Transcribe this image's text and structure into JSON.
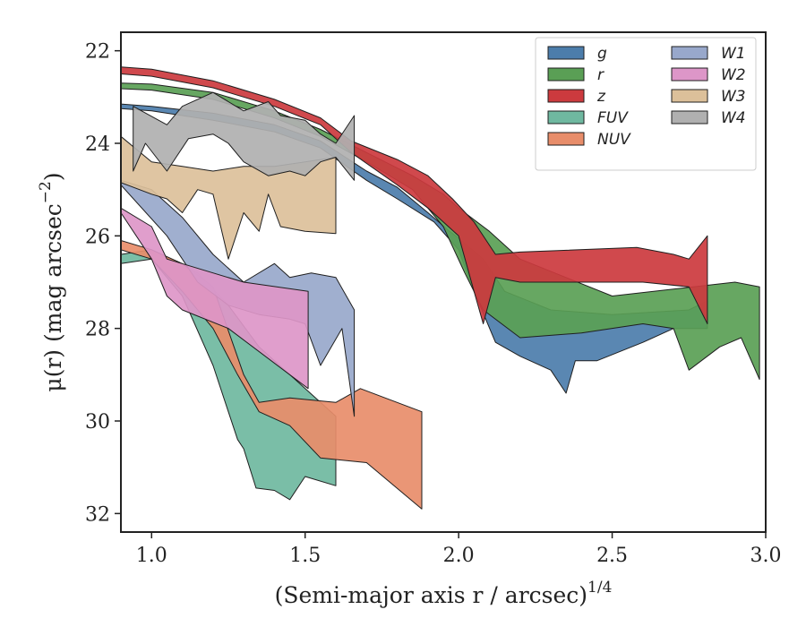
{
  "chart_data": {
    "type": "area",
    "xlabel": "(Semi-major axis r / arcsec)",
    "xlabel_var": "r",
    "xlabel_power": "1/4",
    "ylabel": "μ(r) (mag arcsec",
    "ylabel_var": "r",
    "ylabel_power": "−2",
    "xlim": [
      0.9,
      3.0
    ],
    "ylim": [
      32.4,
      21.6
    ],
    "y_inverted": true,
    "xticks": [
      1.0,
      1.5,
      2.0,
      2.5,
      3.0
    ],
    "xtick_labels": [
      "1.0",
      "1.5",
      "2.0",
      "2.5",
      "3.0"
    ],
    "yticks": [
      22,
      24,
      26,
      28,
      30,
      32
    ],
    "ytick_labels": [
      "22",
      "24",
      "26",
      "28",
      "30",
      "32"
    ],
    "grid": false,
    "legend_position": "top-right",
    "legend_columns": 2,
    "series": [
      {
        "name": "g",
        "color": "#4c7dab",
        "upper": [
          [
            0.9,
            23.15
          ],
          [
            1.0,
            23.2
          ],
          [
            1.2,
            23.35
          ],
          [
            1.4,
            23.6
          ],
          [
            1.55,
            23.95
          ],
          [
            1.7,
            24.6
          ],
          [
            1.8,
            24.95
          ],
          [
            1.9,
            25.5
          ],
          [
            1.97,
            25.9
          ],
          [
            2.0,
            26.05
          ],
          [
            2.08,
            26.5
          ],
          [
            2.15,
            27.2
          ],
          [
            2.3,
            27.6
          ],
          [
            2.5,
            27.7
          ],
          [
            2.75,
            27.6
          ],
          [
            2.81,
            27.4
          ]
        ],
        "lower": [
          [
            2.81,
            28.0
          ],
          [
            2.7,
            28.0
          ],
          [
            2.6,
            28.3
          ],
          [
            2.45,
            28.7
          ],
          [
            2.38,
            28.7
          ],
          [
            2.35,
            29.4
          ],
          [
            2.3,
            28.9
          ],
          [
            2.2,
            28.6
          ],
          [
            2.12,
            28.3
          ],
          [
            2.05,
            27.2
          ],
          [
            2.0,
            26.3
          ],
          [
            1.92,
            25.7
          ],
          [
            1.8,
            25.2
          ],
          [
            1.7,
            24.8
          ],
          [
            1.55,
            24.1
          ],
          [
            1.4,
            23.75
          ],
          [
            1.2,
            23.5
          ],
          [
            1.0,
            23.3
          ],
          [
            0.9,
            23.25
          ]
        ]
      },
      {
        "name": "r",
        "color": "#5a9f55",
        "upper": [
          [
            0.9,
            22.7
          ],
          [
            1.0,
            22.72
          ],
          [
            1.2,
            22.9
          ],
          [
            1.4,
            23.3
          ],
          [
            1.55,
            23.7
          ],
          [
            1.7,
            24.2
          ],
          [
            1.85,
            24.7
          ],
          [
            1.95,
            25.1
          ],
          [
            2.0,
            25.4
          ],
          [
            2.1,
            25.9
          ],
          [
            2.2,
            26.5
          ],
          [
            2.5,
            27.3
          ],
          [
            2.9,
            27.0
          ],
          [
            2.98,
            27.1
          ]
        ],
        "lower": [
          [
            2.98,
            29.1
          ],
          [
            2.92,
            28.2
          ],
          [
            2.85,
            28.4
          ],
          [
            2.75,
            28.9
          ],
          [
            2.7,
            28.0
          ],
          [
            2.6,
            27.9
          ],
          [
            2.4,
            28.1
          ],
          [
            2.2,
            28.2
          ],
          [
            2.08,
            27.6
          ],
          [
            2.02,
            26.8
          ],
          [
            1.95,
            25.8
          ],
          [
            1.85,
            25.0
          ],
          [
            1.7,
            24.4
          ],
          [
            1.55,
            23.85
          ],
          [
            1.4,
            23.45
          ],
          [
            1.2,
            23.05
          ],
          [
            1.0,
            22.85
          ],
          [
            0.9,
            22.82
          ]
        ]
      },
      {
        "name": "z",
        "color": "#cc3a3e",
        "upper": [
          [
            0.9,
            22.35
          ],
          [
            1.0,
            22.4
          ],
          [
            1.2,
            22.65
          ],
          [
            1.4,
            23.05
          ],
          [
            1.55,
            23.45
          ],
          [
            1.65,
            23.95
          ],
          [
            1.8,
            24.35
          ],
          [
            1.9,
            24.7
          ],
          [
            1.98,
            25.2
          ],
          [
            2.05,
            25.7
          ],
          [
            2.12,
            26.4
          ],
          [
            2.2,
            26.35
          ],
          [
            2.58,
            26.25
          ],
          [
            2.7,
            26.4
          ],
          [
            2.75,
            26.5
          ],
          [
            2.81,
            26.0
          ]
        ],
        "lower": [
          [
            2.81,
            27.9
          ],
          [
            2.75,
            27.1
          ],
          [
            2.6,
            27.0
          ],
          [
            2.4,
            27.0
          ],
          [
            2.2,
            27.0
          ],
          [
            2.12,
            26.9
          ],
          [
            2.08,
            27.9
          ],
          [
            2.05,
            27.2
          ],
          [
            2.0,
            26.0
          ],
          [
            1.9,
            25.4
          ],
          [
            1.8,
            24.9
          ],
          [
            1.65,
            24.2
          ],
          [
            1.55,
            23.6
          ],
          [
            1.4,
            23.2
          ],
          [
            1.2,
            22.8
          ],
          [
            1.0,
            22.55
          ],
          [
            0.9,
            22.5
          ]
        ]
      },
      {
        "name": "FUV",
        "color": "#6fb8a0",
        "upper": [
          [
            0.9,
            26.4
          ],
          [
            1.0,
            26.3
          ],
          [
            1.15,
            26.8
          ],
          [
            1.25,
            27.5
          ],
          [
            1.35,
            28.4
          ],
          [
            1.45,
            29.0
          ],
          [
            1.55,
            29.6
          ],
          [
            1.6,
            29.9
          ]
        ],
        "lower": [
          [
            1.6,
            31.4
          ],
          [
            1.5,
            31.2
          ],
          [
            1.45,
            31.7
          ],
          [
            1.4,
            31.5
          ],
          [
            1.34,
            31.45
          ],
          [
            1.3,
            30.6
          ],
          [
            1.28,
            30.4
          ],
          [
            1.25,
            29.8
          ],
          [
            1.2,
            28.8
          ],
          [
            1.1,
            27.3
          ],
          [
            1.0,
            26.5
          ],
          [
            0.9,
            26.6
          ]
        ]
      },
      {
        "name": "NUV",
        "color": "#e88d6a",
        "upper": [
          [
            0.9,
            26.1
          ],
          [
            1.0,
            26.3
          ],
          [
            1.1,
            26.6
          ],
          [
            1.2,
            27.1
          ],
          [
            1.3,
            29.0
          ],
          [
            1.35,
            29.6
          ],
          [
            1.45,
            29.5
          ],
          [
            1.6,
            29.6
          ],
          [
            1.68,
            29.3
          ],
          [
            1.88,
            29.8
          ]
        ],
        "lower": [
          [
            1.88,
            31.9
          ],
          [
            1.7,
            30.9
          ],
          [
            1.55,
            30.8
          ],
          [
            1.45,
            30.1
          ],
          [
            1.35,
            29.8
          ],
          [
            1.28,
            29.0
          ],
          [
            1.2,
            28.0
          ],
          [
            1.1,
            27.2
          ],
          [
            1.0,
            26.5
          ],
          [
            0.9,
            26.3
          ]
        ]
      },
      {
        "name": "W1",
        "color": "#98a8cb",
        "upper": [
          [
            0.9,
            24.8
          ],
          [
            1.0,
            25.0
          ],
          [
            1.1,
            25.6
          ],
          [
            1.2,
            26.4
          ],
          [
            1.3,
            27.0
          ],
          [
            1.4,
            26.6
          ],
          [
            1.45,
            26.9
          ],
          [
            1.52,
            26.8
          ],
          [
            1.6,
            26.9
          ],
          [
            1.66,
            27.6
          ]
        ],
        "lower": [
          [
            1.66,
            29.9
          ],
          [
            1.62,
            28.0
          ],
          [
            1.55,
            28.8
          ],
          [
            1.5,
            27.9
          ],
          [
            1.45,
            27.8
          ],
          [
            1.35,
            27.7
          ],
          [
            1.25,
            27.5
          ],
          [
            1.15,
            27.0
          ],
          [
            1.05,
            26.0
          ],
          [
            0.9,
            24.9
          ]
        ]
      },
      {
        "name": "W2",
        "color": "#dd96c8",
        "upper": [
          [
            0.9,
            25.4
          ],
          [
            1.0,
            25.8
          ],
          [
            1.05,
            26.5
          ],
          [
            1.3,
            27.0
          ],
          [
            1.51,
            27.2
          ]
        ],
        "lower": [
          [
            1.51,
            29.3
          ],
          [
            1.25,
            28.0
          ],
          [
            1.1,
            27.6
          ],
          [
            1.05,
            27.3
          ],
          [
            1.0,
            26.5
          ],
          [
            0.9,
            25.5
          ]
        ]
      },
      {
        "name": "W3",
        "color": "#dcc09a",
        "upper": [
          [
            0.9,
            23.85
          ],
          [
            1.0,
            24.4
          ],
          [
            1.1,
            24.5
          ],
          [
            1.2,
            24.6
          ],
          [
            1.3,
            24.5
          ],
          [
            1.4,
            24.5
          ],
          [
            1.5,
            24.4
          ],
          [
            1.6,
            24.3
          ]
        ],
        "lower": [
          [
            1.6,
            25.95
          ],
          [
            1.5,
            25.9
          ],
          [
            1.42,
            25.8
          ],
          [
            1.38,
            25.1
          ],
          [
            1.35,
            25.9
          ],
          [
            1.3,
            25.5
          ],
          [
            1.25,
            26.5
          ],
          [
            1.2,
            25.1
          ],
          [
            1.15,
            25.0
          ],
          [
            1.1,
            25.5
          ],
          [
            1.05,
            25.2
          ],
          [
            1.0,
            25.1
          ],
          [
            0.9,
            24.85
          ]
        ]
      },
      {
        "name": "W4",
        "color": "#b0b0b0",
        "upper": [
          [
            0.94,
            23.2
          ],
          [
            1.05,
            23.6
          ],
          [
            1.1,
            23.2
          ],
          [
            1.2,
            22.9
          ],
          [
            1.3,
            23.3
          ],
          [
            1.38,
            23.1
          ],
          [
            1.42,
            23.4
          ],
          [
            1.5,
            23.5
          ],
          [
            1.55,
            23.8
          ],
          [
            1.6,
            24.0
          ],
          [
            1.66,
            23.4
          ]
        ],
        "lower": [
          [
            1.66,
            24.8
          ],
          [
            1.6,
            24.3
          ],
          [
            1.55,
            24.4
          ],
          [
            1.5,
            24.7
          ],
          [
            1.45,
            24.6
          ],
          [
            1.38,
            24.7
          ],
          [
            1.3,
            24.4
          ],
          [
            1.25,
            24.0
          ],
          [
            1.2,
            23.8
          ],
          [
            1.12,
            23.9
          ],
          [
            1.05,
            24.6
          ],
          [
            0.98,
            24.0
          ],
          [
            0.94,
            24.6
          ]
        ]
      }
    ]
  }
}
